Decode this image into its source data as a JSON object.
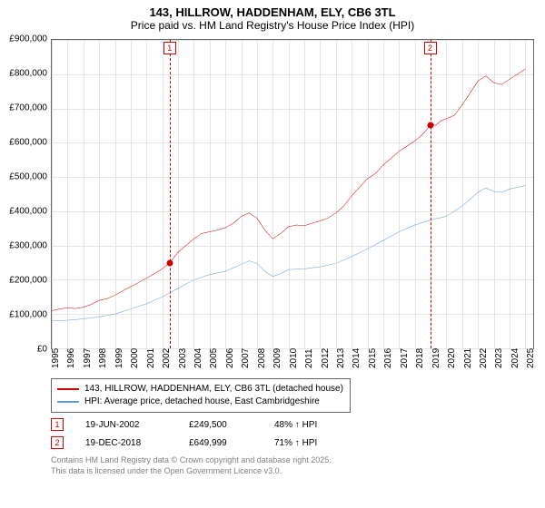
{
  "title": "143, HILLROW, HADDENHAM, ELY, CB6 3TL",
  "subtitle": "Price paid vs. HM Land Registry's House Price Index (HPI)",
  "chart": {
    "type": "line",
    "background_color": "#ffffff",
    "grid_color": "#e5e5e5",
    "axis_color": "#666666",
    "x_years": [
      1995,
      1996,
      1997,
      1998,
      1999,
      2000,
      2001,
      2002,
      2003,
      2004,
      2005,
      2006,
      2007,
      2008,
      2009,
      2010,
      2011,
      2012,
      2013,
      2014,
      2015,
      2016,
      2017,
      2018,
      2019,
      2020,
      2021,
      2022,
      2023,
      2024,
      2025
    ],
    "y_ticks": [
      0,
      100000,
      200000,
      300000,
      400000,
      500000,
      600000,
      700000,
      800000,
      900000
    ],
    "y_tick_labels": [
      "£0",
      "£100,000",
      "£200,000",
      "£300,000",
      "£400,000",
      "£500,000",
      "£600,000",
      "£700,000",
      "£800,000",
      "£900,000"
    ],
    "ylim": [
      0,
      900000
    ],
    "xlim": [
      1995,
      2025.5
    ],
    "series": [
      {
        "name": "price_paid",
        "label": "143, HILLROW, HADDENHAM, ELY, CB6 3TL (detached house)",
        "color": "#cc0000",
        "line_width": 2,
        "points": [
          [
            1995,
            110000
          ],
          [
            1995.5,
            115000
          ],
          [
            1996,
            118000
          ],
          [
            1996.5,
            116000
          ],
          [
            1997,
            120000
          ],
          [
            1997.5,
            128000
          ],
          [
            1998,
            140000
          ],
          [
            1998.5,
            145000
          ],
          [
            1999,
            155000
          ],
          [
            1999.5,
            168000
          ],
          [
            2000,
            180000
          ],
          [
            2000.5,
            192000
          ],
          [
            2001,
            205000
          ],
          [
            2001.5,
            218000
          ],
          [
            2002,
            232000
          ],
          [
            2002.47,
            249500
          ],
          [
            2003,
            280000
          ],
          [
            2003.5,
            300000
          ],
          [
            2004,
            320000
          ],
          [
            2004.5,
            335000
          ],
          [
            2005,
            340000
          ],
          [
            2005.5,
            345000
          ],
          [
            2006,
            352000
          ],
          [
            2006.5,
            365000
          ],
          [
            2007,
            385000
          ],
          [
            2007.5,
            395000
          ],
          [
            2008,
            380000
          ],
          [
            2008.5,
            345000
          ],
          [
            2009,
            320000
          ],
          [
            2009.5,
            335000
          ],
          [
            2010,
            355000
          ],
          [
            2010.5,
            360000
          ],
          [
            2011,
            358000
          ],
          [
            2011.5,
            365000
          ],
          [
            2012,
            372000
          ],
          [
            2012.5,
            380000
          ],
          [
            2013,
            395000
          ],
          [
            2013.5,
            415000
          ],
          [
            2014,
            445000
          ],
          [
            2014.5,
            470000
          ],
          [
            2015,
            495000
          ],
          [
            2015.5,
            510000
          ],
          [
            2016,
            535000
          ],
          [
            2016.5,
            555000
          ],
          [
            2017,
            575000
          ],
          [
            2017.5,
            590000
          ],
          [
            2018,
            605000
          ],
          [
            2018.5,
            625000
          ],
          [
            2018.97,
            649999
          ],
          [
            2019,
            660000
          ],
          [
            2019.3,
            650000
          ],
          [
            2019.7,
            665000
          ],
          [
            2020,
            670000
          ],
          [
            2020.5,
            680000
          ],
          [
            2021,
            710000
          ],
          [
            2021.5,
            745000
          ],
          [
            2022,
            780000
          ],
          [
            2022.5,
            795000
          ],
          [
            2023,
            775000
          ],
          [
            2023.5,
            770000
          ],
          [
            2024,
            785000
          ],
          [
            2024.5,
            800000
          ],
          [
            2025,
            815000
          ]
        ]
      },
      {
        "name": "hpi",
        "label": "HPI: Average price, detached house, East Cambridgeshire",
        "color": "#6699cc",
        "line_width": 2,
        "points": [
          [
            1995,
            80000
          ],
          [
            1996,
            82000
          ],
          [
            1997,
            86000
          ],
          [
            1998,
            92000
          ],
          [
            1999,
            100000
          ],
          [
            2000,
            115000
          ],
          [
            2001,
            130000
          ],
          [
            2002,
            150000
          ],
          [
            2003,
            175000
          ],
          [
            2004,
            200000
          ],
          [
            2005,
            215000
          ],
          [
            2006,
            225000
          ],
          [
            2007,
            245000
          ],
          [
            2007.5,
            255000
          ],
          [
            2008,
            248000
          ],
          [
            2008.5,
            225000
          ],
          [
            2009,
            210000
          ],
          [
            2009.5,
            218000
          ],
          [
            2010,
            230000
          ],
          [
            2011,
            232000
          ],
          [
            2012,
            238000
          ],
          [
            2013,
            248000
          ],
          [
            2014,
            268000
          ],
          [
            2015,
            290000
          ],
          [
            2016,
            315000
          ],
          [
            2017,
            340000
          ],
          [
            2018,
            360000
          ],
          [
            2019,
            375000
          ],
          [
            2020,
            385000
          ],
          [
            2021,
            415000
          ],
          [
            2022,
            455000
          ],
          [
            2022.5,
            468000
          ],
          [
            2023,
            458000
          ],
          [
            2023.5,
            455000
          ],
          [
            2024,
            465000
          ],
          [
            2025,
            475000
          ]
        ]
      }
    ],
    "markers": [
      {
        "n": "1",
        "x": 2002.47,
        "y": 249500,
        "color": "#cc0000"
      },
      {
        "n": "2",
        "x": 2018.97,
        "y": 649999,
        "color": "#cc0000"
      }
    ]
  },
  "legend": {
    "items": [
      {
        "color": "#cc0000",
        "label": "143, HILLROW, HADDENHAM, ELY, CB6 3TL (detached house)"
      },
      {
        "color": "#6699cc",
        "label": "HPI: Average price, detached house, East Cambridgeshire"
      }
    ]
  },
  "transactions": [
    {
      "n": "1",
      "color": "#cc0000",
      "date": "19-JUN-2002",
      "price": "£249,500",
      "pct": "48% ↑ HPI"
    },
    {
      "n": "2",
      "color": "#cc0000",
      "date": "19-DEC-2018",
      "price": "£649,999",
      "pct": "71% ↑ HPI"
    }
  ],
  "footer": {
    "line1": "Contains HM Land Registry data © Crown copyright and database right 2025.",
    "line2": "This data is licensed under the Open Government Licence v3.0."
  }
}
